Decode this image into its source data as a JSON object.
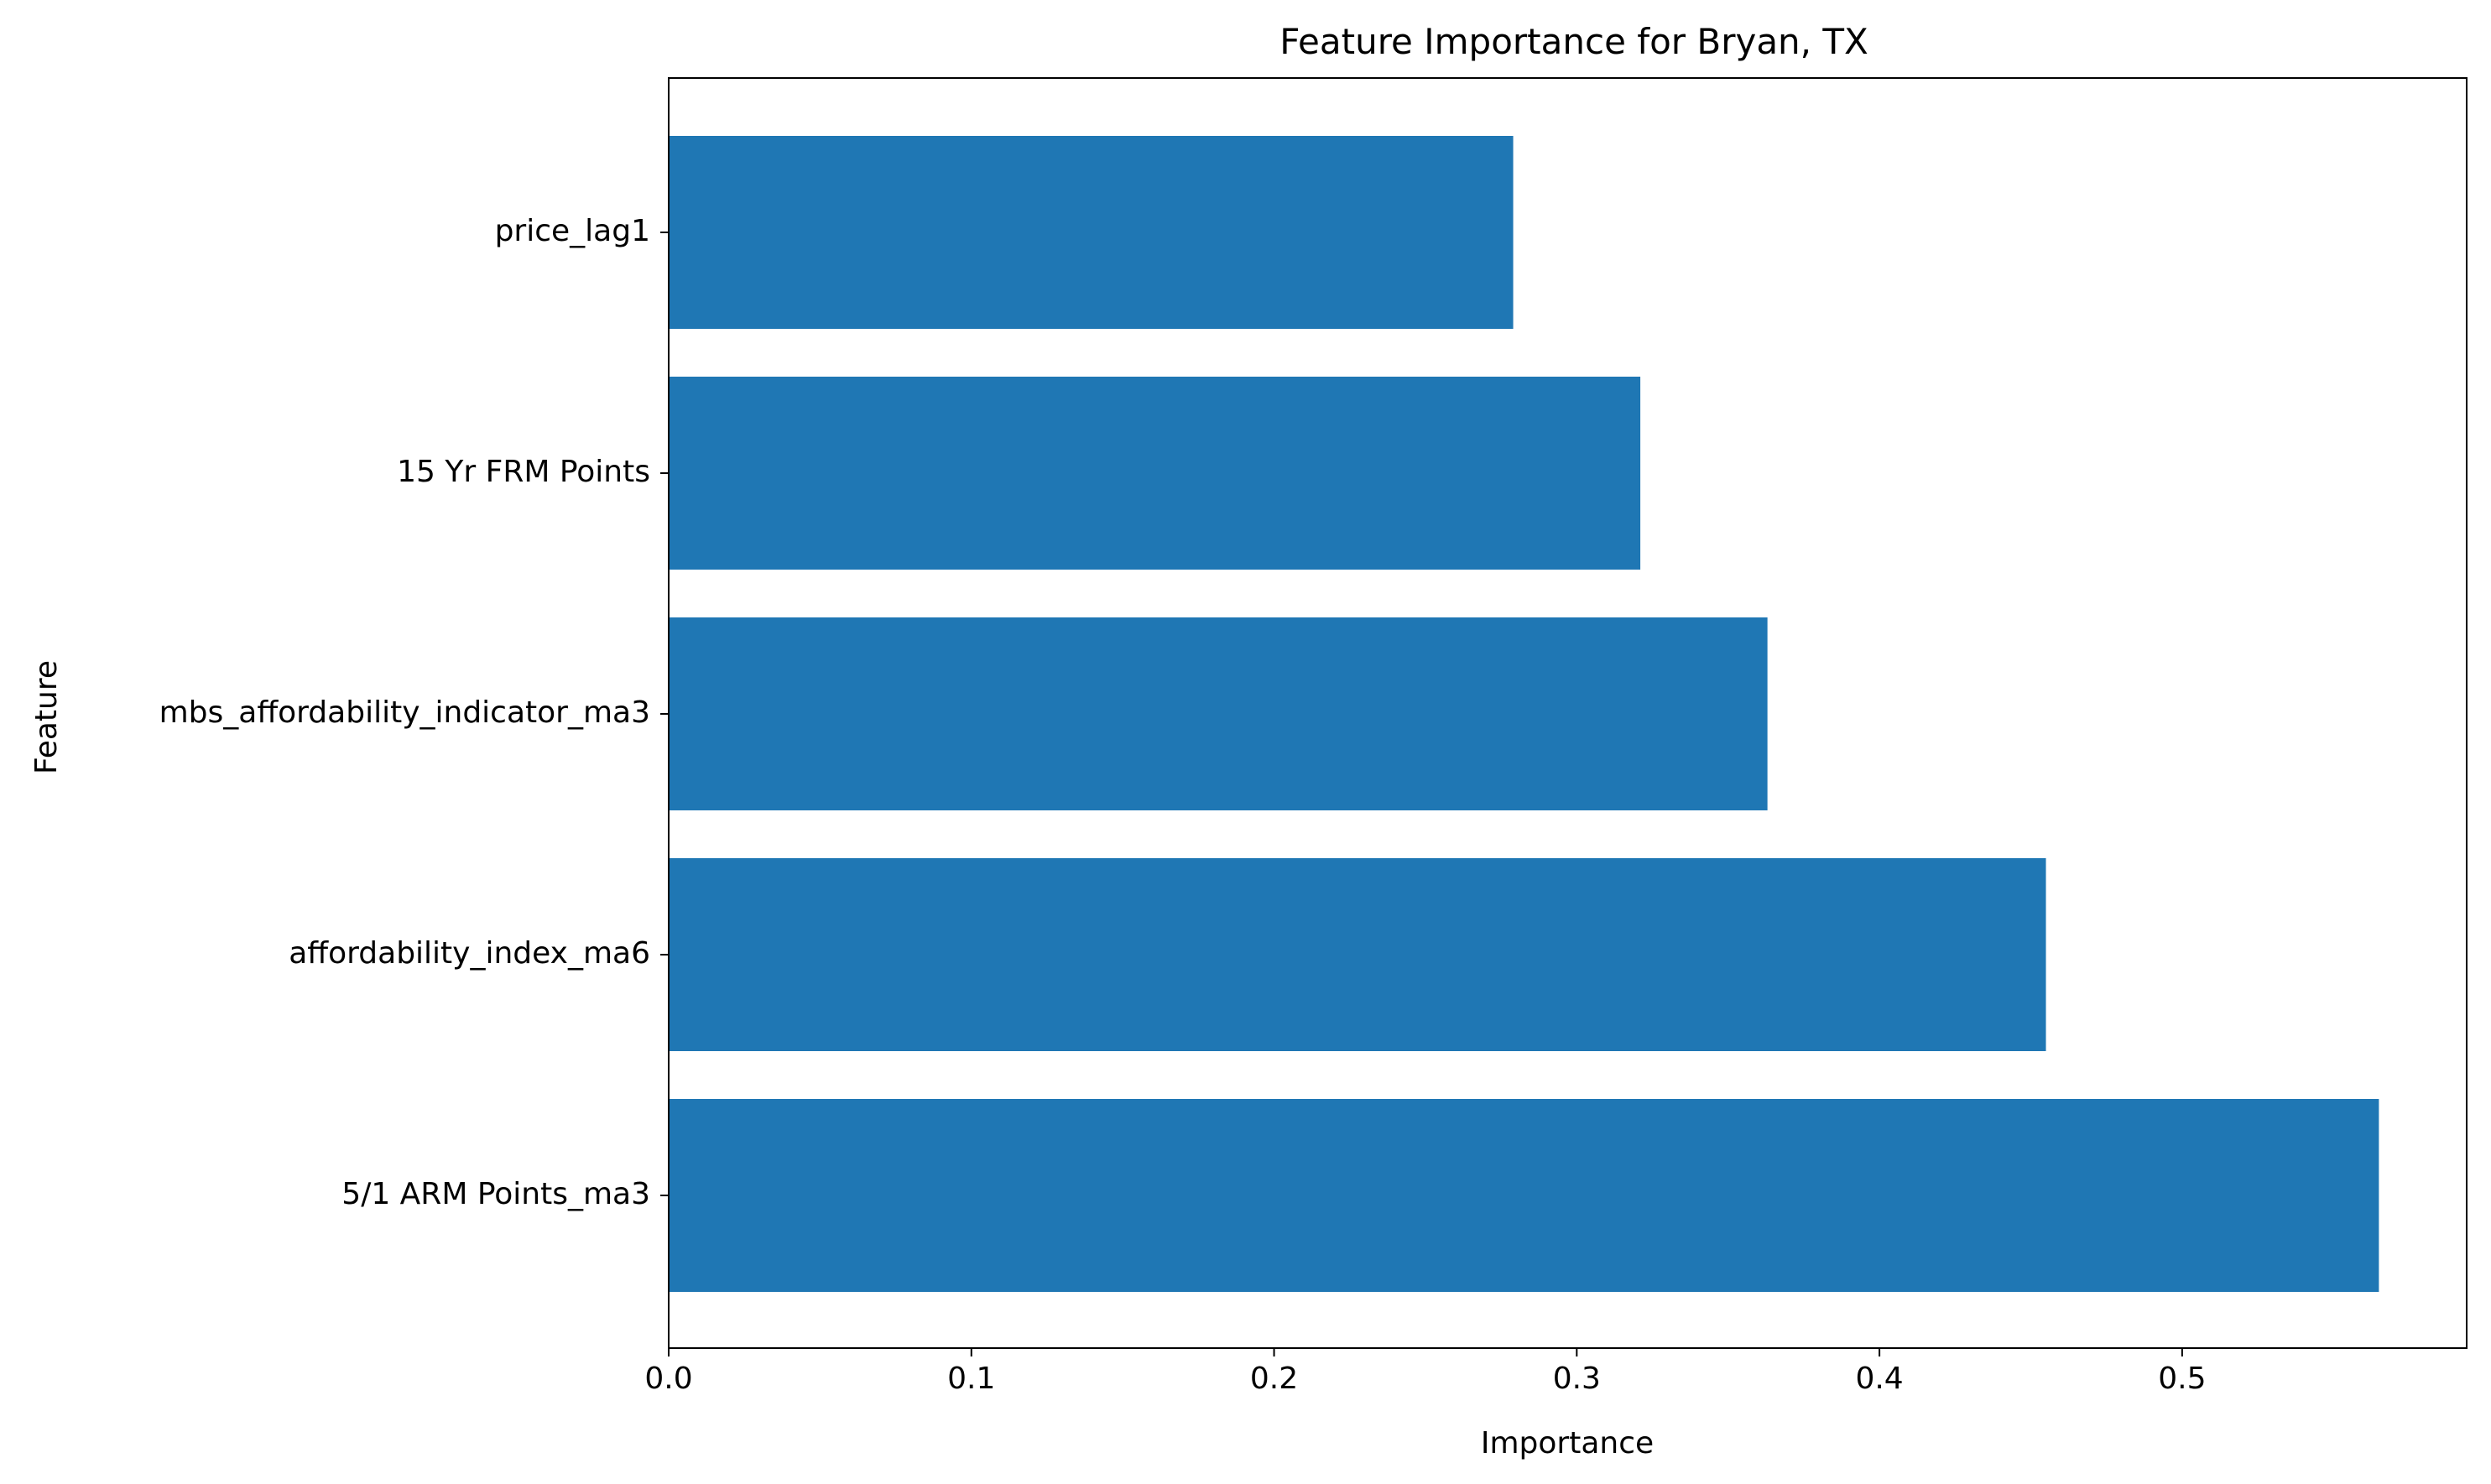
{
  "chart_data": {
    "type": "bar",
    "orientation": "horizontal",
    "title": "Feature Importance for Bryan, TX",
    "xlabel": "Importance",
    "ylabel": "Feature",
    "categories": [
      "5/1 ARM Points_ma3",
      "affordability_index_ma6",
      "mbs_affordability_indicator_ma3",
      "15 Yr FRM Points",
      "price_lag1"
    ],
    "values": [
      0.565,
      0.455,
      0.363,
      0.321,
      0.279
    ],
    "xlim": [
      0,
      0.594
    ],
    "xticks": [
      0.0,
      0.1,
      0.2,
      0.3,
      0.4,
      0.5
    ],
    "xtick_labels": [
      "0.0",
      "0.1",
      "0.2",
      "0.3",
      "0.4",
      "0.5"
    ],
    "grid": false,
    "bar_color": "#1f77b4"
  }
}
